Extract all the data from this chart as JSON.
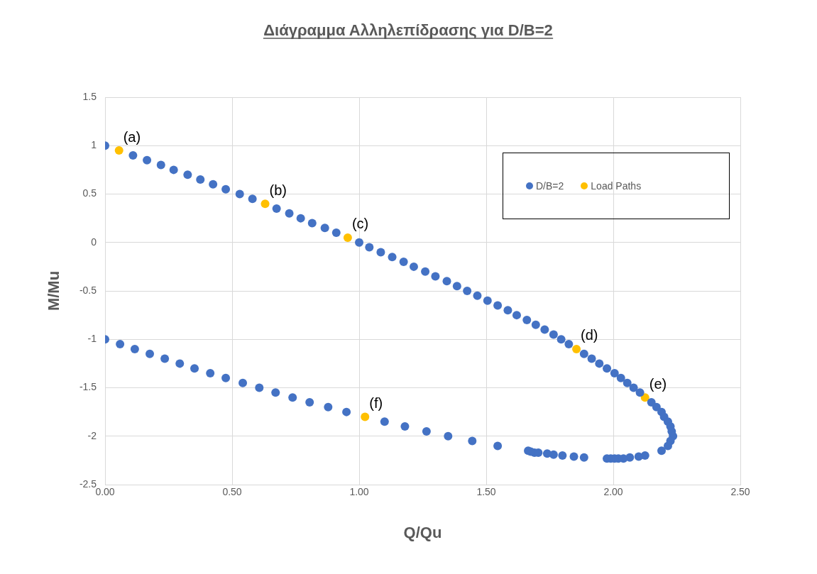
{
  "chart_data": {
    "type": "scatter",
    "title": "Διάγραμμα Αλληλεπίδρασης για D/B=2",
    "xlabel": "Q/Qu",
    "ylabel": "M/Mu",
    "series": [
      {
        "name": "D/B=2",
        "color": "#4472c4",
        "x": [
          0,
          0.11,
          0.165,
          0.22,
          0.27,
          0.325,
          0.375,
          0.425,
          0.475,
          0.53,
          0.58,
          0.675,
          0.725,
          0.77,
          0.815,
          0.865,
          0.91,
          1.0,
          1.04,
          1.085,
          1.13,
          1.175,
          1.215,
          1.26,
          1.3,
          1.345,
          1.385,
          1.425,
          1.465,
          1.505,
          1.545,
          1.585,
          1.62,
          1.66,
          1.695,
          1.73,
          1.765,
          1.795,
          1.825,
          1.885,
          1.915,
          1.945,
          1.975,
          2.005,
          2.03,
          2.055,
          2.08,
          2.105,
          2.15,
          2.17,
          2.19,
          2.2,
          2.215,
          2.225,
          2.23,
          2.235,
          2.225,
          2.215,
          2.19,
          2.125,
          2.1,
          2.065,
          2.04,
          2.02,
          2.005,
          1.99,
          1.975,
          1.885,
          1.845,
          1.8,
          1.765,
          1.74,
          1.705,
          1.69,
          1.675,
          1.665,
          1.545,
          1.445,
          1.35,
          1.265,
          1.18,
          1.1,
          0.95,
          0.878,
          0.805,
          0.738,
          0.671,
          0.607,
          0.542,
          0.475,
          0.414,
          0.352,
          0.294,
          0.235,
          0.176,
          0.117,
          0.059,
          0
        ],
        "values": [
          1,
          0.9,
          0.85,
          0.8,
          0.75,
          0.7,
          0.65,
          0.6,
          0.55,
          0.5,
          0.45,
          0.35,
          0.3,
          0.25,
          0.2,
          0.15,
          0.1,
          0,
          -0.05,
          -0.1,
          -0.15,
          -0.2,
          -0.25,
          -0.3,
          -0.35,
          -0.4,
          -0.45,
          -0.5,
          -0.55,
          -0.6,
          -0.65,
          -0.7,
          -0.75,
          -0.8,
          -0.85,
          -0.9,
          -0.95,
          -1.0,
          -1.05,
          -1.15,
          -1.2,
          -1.25,
          -1.3,
          -1.35,
          -1.4,
          -1.45,
          -1.5,
          -1.55,
          -1.65,
          -1.7,
          -1.75,
          -1.8,
          -1.85,
          -1.9,
          -1.95,
          -2.0,
          -2.05,
          -2.1,
          -2.15,
          -2.2,
          -2.21,
          -2.22,
          -2.23,
          -2.23,
          -2.23,
          -2.23,
          -2.23,
          -2.22,
          -2.21,
          -2.2,
          -2.19,
          -2.18,
          -2.17,
          -2.17,
          -2.16,
          -2.15,
          -2.1,
          -2.05,
          -2.0,
          -1.95,
          -1.9,
          -1.85,
          -1.75,
          -1.7,
          -1.65,
          -1.6,
          -1.55,
          -1.5,
          -1.45,
          -1.4,
          -1.35,
          -1.3,
          -1.25,
          -1.2,
          -1.15,
          -1.1,
          -1.05,
          -1
        ]
      },
      {
        "name": "Load Paths",
        "color": "#ffc000",
        "x": [
          0.055,
          0.63,
          0.955,
          1.855,
          2.125,
          1.023
        ],
        "values": [
          0.95,
          0.4,
          0.05,
          -1.1,
          -1.6,
          -1.8
        ]
      }
    ],
    "annotations": [
      {
        "text": "(a)",
        "x": 0.055,
        "y": 0.95
      },
      {
        "text": "(b)",
        "x": 0.63,
        "y": 0.4
      },
      {
        "text": "(c)",
        "x": 0.955,
        "y": 0.05
      },
      {
        "text": "(d)",
        "x": 1.855,
        "y": -1.1
      },
      {
        "text": "(e)",
        "x": 2.125,
        "y": -1.6
      },
      {
        "text": "(f)",
        "x": 1.023,
        "y": -1.8
      }
    ],
    "xlim": [
      0,
      2.5
    ],
    "xticks": [
      {
        "value": 0,
        "label": "0.00"
      },
      {
        "value": 0.5,
        "label": "0.50"
      },
      {
        "value": 1,
        "label": "1.00"
      },
      {
        "value": 1.5,
        "label": "1.50"
      },
      {
        "value": 2,
        "label": "2.00"
      },
      {
        "value": 2.5,
        "label": "2.50"
      }
    ],
    "ylim": [
      -2.5,
      1.5
    ],
    "yticks": [
      -2.5,
      -2,
      -1.5,
      -1,
      -0.5,
      0,
      0.5,
      1,
      1.5
    ],
    "grid": true,
    "legend": "top right",
    "marker": "circle"
  }
}
